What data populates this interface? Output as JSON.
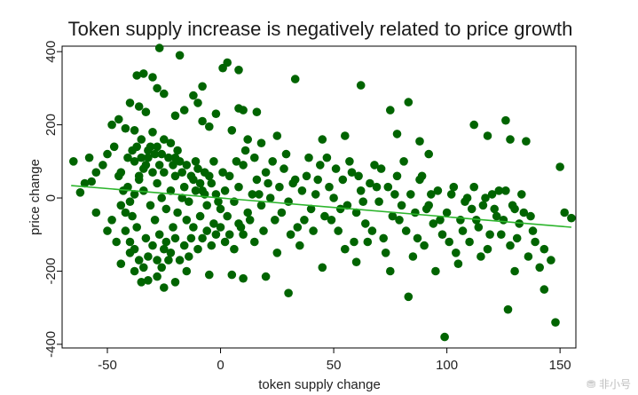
{
  "chart_data": {
    "type": "scatter",
    "title": "Token supply increase is negatively related to price growth",
    "xlabel": "token supply change",
    "ylabel": "price change",
    "xlim": [
      -70,
      157
    ],
    "ylim": [
      -410,
      415
    ],
    "xticks": [
      -50,
      0,
      50,
      100,
      150
    ],
    "yticks": [
      -400,
      -200,
      0,
      200,
      400
    ],
    "xtick_labels": [
      "-50",
      "0",
      "50",
      "100",
      "150"
    ],
    "ytick_labels": [
      "-400",
      "-200",
      "0",
      "200",
      "400"
    ],
    "grid": false,
    "series": [
      {
        "name": "observations",
        "color": "#006400",
        "points": [
          [
            -27,
            410
          ],
          [
            -18,
            390
          ],
          [
            -37,
            335
          ],
          [
            -34,
            340
          ],
          [
            -30,
            330
          ],
          [
            -28,
            300
          ],
          [
            -25,
            285
          ],
          [
            -12,
            280
          ],
          [
            -8,
            305
          ],
          [
            3,
            370
          ],
          [
            1,
            355
          ],
          [
            8,
            350
          ],
          [
            33,
            325
          ],
          [
            62,
            308
          ],
          [
            -40,
            260
          ],
          [
            -36,
            250
          ],
          [
            -33,
            235
          ],
          [
            -20,
            225
          ],
          [
            -16,
            240
          ],
          [
            -10,
            260
          ],
          [
            -45,
            215
          ],
          [
            -48,
            200
          ],
          [
            -42,
            190
          ],
          [
            -38,
            185
          ],
          [
            -8,
            210
          ],
          [
            -5,
            195
          ],
          [
            -2,
            230
          ],
          [
            8,
            245
          ],
          [
            10,
            240
          ],
          [
            16,
            235
          ],
          [
            5,
            185
          ],
          [
            12,
            160
          ],
          [
            18,
            150
          ],
          [
            25,
            170
          ],
          [
            45,
            160
          ],
          [
            55,
            170
          ],
          [
            75,
            240
          ],
          [
            83,
            262
          ],
          [
            78,
            175
          ],
          [
            88,
            155
          ],
          [
            92,
            120
          ],
          [
            112,
            200
          ],
          [
            118,
            170
          ],
          [
            126,
            212
          ],
          [
            128,
            160
          ],
          [
            135,
            155
          ],
          [
            -65,
            100
          ],
          [
            -58,
            110
          ],
          [
            -55,
            70
          ],
          [
            -60,
            40
          ],
          [
            -52,
            90
          ],
          [
            -50,
            120
          ],
          [
            -47,
            140
          ],
          [
            -45,
            60
          ],
          [
            -43,
            20
          ],
          [
            -40,
            -10
          ],
          [
            -42,
            -40
          ],
          [
            -38,
            10
          ],
          [
            -36,
            50
          ],
          [
            -34,
            80
          ],
          [
            -32,
            110
          ],
          [
            -30,
            70
          ],
          [
            -28,
            40
          ],
          [
            -26,
            0
          ],
          [
            -24,
            -30
          ],
          [
            -22,
            20
          ],
          [
            -20,
            60
          ],
          [
            -18,
            100
          ],
          [
            -16,
            30
          ],
          [
            -14,
            -10
          ],
          [
            -12,
            50
          ],
          [
            -10,
            80
          ],
          [
            -8,
            20
          ],
          [
            -6,
            -20
          ],
          [
            -4,
            40
          ],
          [
            -2,
            10
          ],
          [
            0,
            -30
          ],
          [
            2,
            20
          ],
          [
            4,
            60
          ],
          [
            6,
            -10
          ],
          [
            8,
            30
          ],
          [
            10,
            90
          ],
          [
            12,
            -40
          ],
          [
            14,
            10
          ],
          [
            16,
            50
          ],
          [
            18,
            -20
          ],
          [
            20,
            70
          ],
          [
            22,
            0
          ],
          [
            24,
            -60
          ],
          [
            26,
            30
          ],
          [
            28,
            80
          ],
          [
            30,
            -10
          ],
          [
            32,
            40
          ],
          [
            34,
            -80
          ],
          [
            36,
            20
          ],
          [
            38,
            60
          ],
          [
            40,
            -30
          ],
          [
            42,
            10
          ],
          [
            44,
            90
          ],
          [
            46,
            -50
          ],
          [
            48,
            30
          ],
          [
            50,
            0
          ],
          [
            52,
            -90
          ],
          [
            54,
            50
          ],
          [
            56,
            -20
          ],
          [
            58,
            70
          ],
          [
            60,
            -40
          ],
          [
            62,
            20
          ],
          [
            64,
            -70
          ],
          [
            66,
            40
          ],
          [
            68,
            90
          ],
          [
            70,
            -10
          ],
          [
            72,
            -110
          ],
          [
            74,
            30
          ],
          [
            76,
            -50
          ],
          [
            78,
            60
          ],
          [
            80,
            -20
          ],
          [
            82,
            -90
          ],
          [
            84,
            10
          ],
          [
            86,
            -40
          ],
          [
            88,
            50
          ],
          [
            90,
            -130
          ],
          [
            92,
            -20
          ],
          [
            94,
            -70
          ],
          [
            96,
            20
          ],
          [
            98,
            -100
          ],
          [
            100,
            -40
          ],
          [
            102,
            10
          ],
          [
            104,
            -150
          ],
          [
            106,
            -60
          ],
          [
            108,
            -10
          ],
          [
            110,
            -120
          ],
          [
            112,
            30
          ],
          [
            114,
            -80
          ],
          [
            116,
            -20
          ],
          [
            118,
            -140
          ],
          [
            120,
            10
          ],
          [
            122,
            -50
          ],
          [
            124,
            -100
          ],
          [
            126,
            20
          ],
          [
            128,
            -130
          ],
          [
            130,
            -30
          ],
          [
            132,
            -70
          ],
          [
            134,
            -40
          ],
          [
            136,
            -160
          ],
          [
            138,
            -90
          ],
          [
            141,
            -190
          ],
          [
            143,
            -140
          ],
          [
            146,
            -170
          ],
          [
            150,
            85
          ],
          [
            152,
            -40
          ],
          [
            155,
            -55
          ],
          [
            148,
            -340
          ],
          [
            127,
            -305
          ],
          [
            143,
            -250
          ],
          [
            130,
            -200
          ],
          [
            99,
            -380
          ],
          [
            83,
            -270
          ],
          [
            95,
            -200
          ],
          [
            75,
            -200
          ],
          [
            60,
            -175
          ],
          [
            45,
            -190
          ],
          [
            30,
            -260
          ],
          [
            20,
            -215
          ],
          [
            10,
            -220
          ],
          [
            5,
            -210
          ],
          [
            -5,
            -210
          ],
          [
            -15,
            -200
          ],
          [
            -20,
            -230
          ],
          [
            -25,
            -245
          ],
          [
            -28,
            -215
          ],
          [
            -32,
            -225
          ],
          [
            -35,
            -230
          ],
          [
            -38,
            -200
          ],
          [
            -40,
            -150
          ],
          [
            -44,
            -180
          ],
          [
            -46,
            -120
          ],
          [
            -50,
            -90
          ],
          [
            -48,
            -60
          ],
          [
            -55,
            -40
          ],
          [
            -62,
            15
          ],
          [
            -57,
            45
          ],
          [
            15,
            -120
          ],
          [
            25,
            -150
          ],
          [
            35,
            -130
          ],
          [
            55,
            -140
          ],
          [
            65,
            -120
          ],
          [
            85,
            -160
          ],
          [
            105,
            -180
          ],
          [
            115,
            -160
          ],
          [
            -30,
            180
          ],
          [
            -25,
            160
          ],
          [
            -22,
            150
          ],
          [
            -35,
            160
          ],
          [
            -28,
            140
          ],
          [
            -32,
            130
          ],
          [
            -26,
            120
          ],
          [
            -20,
            110
          ],
          [
            -38,
            100
          ],
          [
            -36,
            60
          ],
          [
            -34,
            20
          ],
          [
            -31,
            -20
          ],
          [
            -29,
            -60
          ],
          [
            -27,
            -100
          ],
          [
            -25,
            -140
          ],
          [
            -23,
            -170
          ],
          [
            -33,
            -110
          ],
          [
            -37,
            -80
          ],
          [
            -39,
            -50
          ],
          [
            -41,
            30
          ],
          [
            -21,
            -80
          ],
          [
            -19,
            -40
          ],
          [
            -17,
            0
          ],
          [
            -15,
            -60
          ],
          [
            -13,
            -110
          ],
          [
            -11,
            20
          ],
          [
            -9,
            -50
          ],
          [
            -7,
            70
          ],
          [
            -3,
            -70
          ],
          [
            1,
            70
          ],
          [
            3,
            -50
          ],
          [
            7,
            100
          ],
          [
            9,
            -80
          ],
          [
            11,
            130
          ],
          [
            13,
            -60
          ],
          [
            15,
            110
          ],
          [
            17,
            10
          ],
          [
            19,
            -90
          ],
          [
            21,
            40
          ],
          [
            23,
            100
          ],
          [
            27,
            -40
          ],
          [
            29,
            120
          ],
          [
            31,
            -100
          ],
          [
            33,
            50
          ],
          [
            37,
            -60
          ],
          [
            39,
            110
          ],
          [
            41,
            -90
          ],
          [
            43,
            50
          ],
          [
            47,
            110
          ],
          [
            49,
            -60
          ],
          [
            51,
            80
          ],
          [
            53,
            -30
          ],
          [
            57,
            100
          ],
          [
            59,
            -120
          ],
          [
            61,
            60
          ],
          [
            63,
            -10
          ],
          [
            67,
            -90
          ],
          [
            69,
            30
          ],
          [
            71,
            80
          ],
          [
            73,
            -150
          ],
          [
            77,
            10
          ],
          [
            79,
            -60
          ],
          [
            81,
            100
          ],
          [
            87,
            -110
          ],
          [
            89,
            60
          ],
          [
            91,
            -30
          ],
          [
            93,
            10
          ],
          [
            97,
            -60
          ],
          [
            101,
            -120
          ],
          [
            103,
            30
          ],
          [
            107,
            -90
          ],
          [
            109,
            0
          ],
          [
            111,
            -30
          ],
          [
            113,
            -60
          ],
          [
            117,
            0
          ],
          [
            119,
            -100
          ],
          [
            121,
            -30
          ],
          [
            123,
            20
          ],
          [
            125,
            -60
          ],
          [
            129,
            -20
          ],
          [
            131,
            -110
          ],
          [
            133,
            10
          ],
          [
            137,
            -50
          ],
          [
            139,
            -120
          ],
          [
            -44,
            70
          ],
          [
            -41,
            110
          ],
          [
            -39,
            130
          ],
          [
            -37,
            140
          ],
          [
            -35,
            110
          ],
          [
            -33,
            90
          ],
          [
            -31,
            140
          ],
          [
            -29,
            120
          ],
          [
            -27,
            90
          ],
          [
            -25,
            70
          ],
          [
            -23,
            110
          ],
          [
            -21,
            90
          ],
          [
            -19,
            130
          ],
          [
            -17,
            70
          ],
          [
            -15,
            90
          ],
          [
            -13,
            60
          ],
          [
            -11,
            100
          ],
          [
            -9,
            40
          ],
          [
            -7,
            10
          ],
          [
            -5,
            60
          ],
          [
            -3,
            100
          ],
          [
            -1,
            -10
          ],
          [
            -44,
            -20
          ],
          [
            -42,
            -90
          ],
          [
            -40,
            -120
          ],
          [
            -38,
            -140
          ],
          [
            -36,
            -170
          ],
          [
            -34,
            -190
          ],
          [
            -32,
            -160
          ],
          [
            -30,
            -130
          ],
          [
            -28,
            -170
          ],
          [
            -26,
            -190
          ],
          [
            -24,
            -120
          ],
          [
            -22,
            -150
          ],
          [
            -20,
            -110
          ],
          [
            -18,
            -170
          ],
          [
            -16,
            -130
          ],
          [
            -14,
            -160
          ],
          [
            -12,
            -80
          ],
          [
            -10,
            -140
          ],
          [
            -8,
            -110
          ],
          [
            -6,
            -90
          ],
          [
            -4,
            -130
          ],
          [
            -2,
            -100
          ],
          [
            0,
            -80
          ],
          [
            2,
            -120
          ],
          [
            4,
            -100
          ],
          [
            6,
            -140
          ],
          [
            8,
            -70
          ],
          [
            10,
            -100
          ]
        ]
      }
    ],
    "trend_line": {
      "name": "fitted line",
      "color": "#2db52d",
      "x": [
        -66,
        155
      ],
      "y": [
        34,
        -80
      ]
    }
  },
  "watermark": "⛃ 非小号"
}
